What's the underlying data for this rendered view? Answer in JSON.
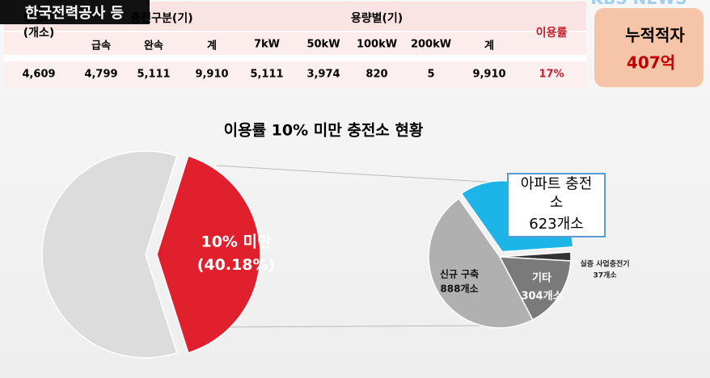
{
  "caption": "한국전력공사 등",
  "logo": "KBS NEWS",
  "table": {
    "groups": [
      "충전소 (개소)",
      "충전구분(기)",
      "용량별(기)",
      "이용률"
    ],
    "columns": [
      "급속",
      "완속",
      "계",
      "7kW",
      "50kW",
      "100kW",
      "200kW",
      "계"
    ],
    "row": [
      "4,609",
      "4,799",
      "5,111",
      "9,910",
      "5,111",
      "3,974",
      "820",
      "5",
      "9,910",
      "17%"
    ]
  },
  "summary": {
    "label": "누적적자",
    "value": "407억"
  },
  "chart_data": [
    {
      "type": "pie",
      "title": "이용률 10% 미만 충전소 현황",
      "categories": [
        "10% 미만",
        null
      ],
      "values": [
        40.18,
        59.82
      ],
      "value_labels": [
        "(40.18%)",
        null
      ],
      "colors": [
        "#e0202c",
        "#dcdcdc"
      ]
    },
    {
      "type": "pie",
      "categories": [
        "아파트 충전소",
        "실증 사업충전기",
        "기타",
        "신규 구축"
      ],
      "values": [
        623,
        37,
        304,
        888
      ],
      "value_labels": [
        "623개소",
        "37개소",
        "304개소",
        "888개소"
      ],
      "colors": [
        "#1db4e8",
        "#333333",
        "#7a7a7a",
        "#b0b0b0"
      ]
    }
  ]
}
